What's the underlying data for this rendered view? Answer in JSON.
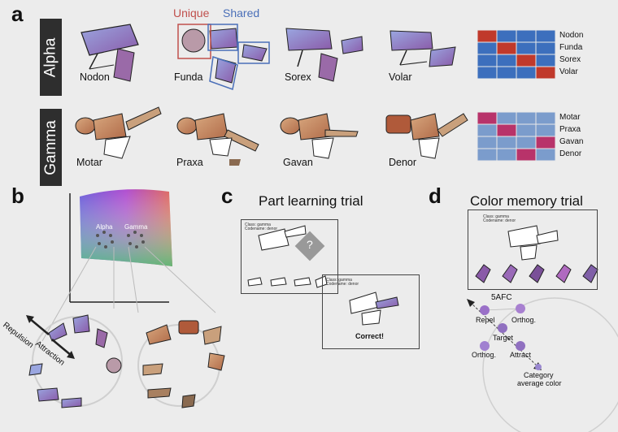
{
  "panel_a": {
    "letter": "a",
    "legend": {
      "unique": "Unique",
      "shared": "Shared"
    },
    "colors": {
      "unique": "#c0504d",
      "shared": "#4a6fb8",
      "alpha_cell": "#3c6fbd",
      "alpha_hl": "#c0392b",
      "gamma_cell": "#7b9ccc",
      "gamma_hl": "#b8336a"
    },
    "alpha": {
      "label": "Alpha",
      "creatures": [
        "Nodon",
        "Funda",
        "Sorex",
        "Volar"
      ],
      "grid_labels": [
        "Nodon",
        "Funda",
        "Sorex",
        "Volar"
      ],
      "highlight_cols": [
        0,
        1,
        2,
        3
      ]
    },
    "gamma": {
      "label": "Gamma",
      "creatures": [
        "Motar",
        "Praxa",
        "Gavan",
        "Denor"
      ],
      "grid_labels": [
        "Motar",
        "Praxa",
        "Gavan",
        "Denor"
      ],
      "highlight_cols": [
        0,
        1,
        3,
        2
      ]
    }
  },
  "panel_b": {
    "letter": "b",
    "cluster_labels": [
      "Alpha",
      "Gamma"
    ],
    "repulsion": "Repulsion",
    "attraction": "Attraction"
  },
  "panel_c": {
    "letter": "c",
    "title": "Part learning trial",
    "card1_text": [
      "Class: gamma",
      "Codename: denor"
    ],
    "question": "?",
    "card2_text": [
      "Class: gamma",
      "Codename: denor"
    ],
    "feedback": "Correct!"
  },
  "panel_d": {
    "letter": "d",
    "title": "Color memory trial",
    "card_text": [
      "Class: gamma",
      "Codename: denor"
    ],
    "afc": "5AFC",
    "labels": {
      "repel": "Repel",
      "orthog1": "Orthog.",
      "target": "Target",
      "orthog2": "Orthog.",
      "attract": "Attract",
      "category_l1": "Category",
      "category_l2": "average color"
    }
  }
}
